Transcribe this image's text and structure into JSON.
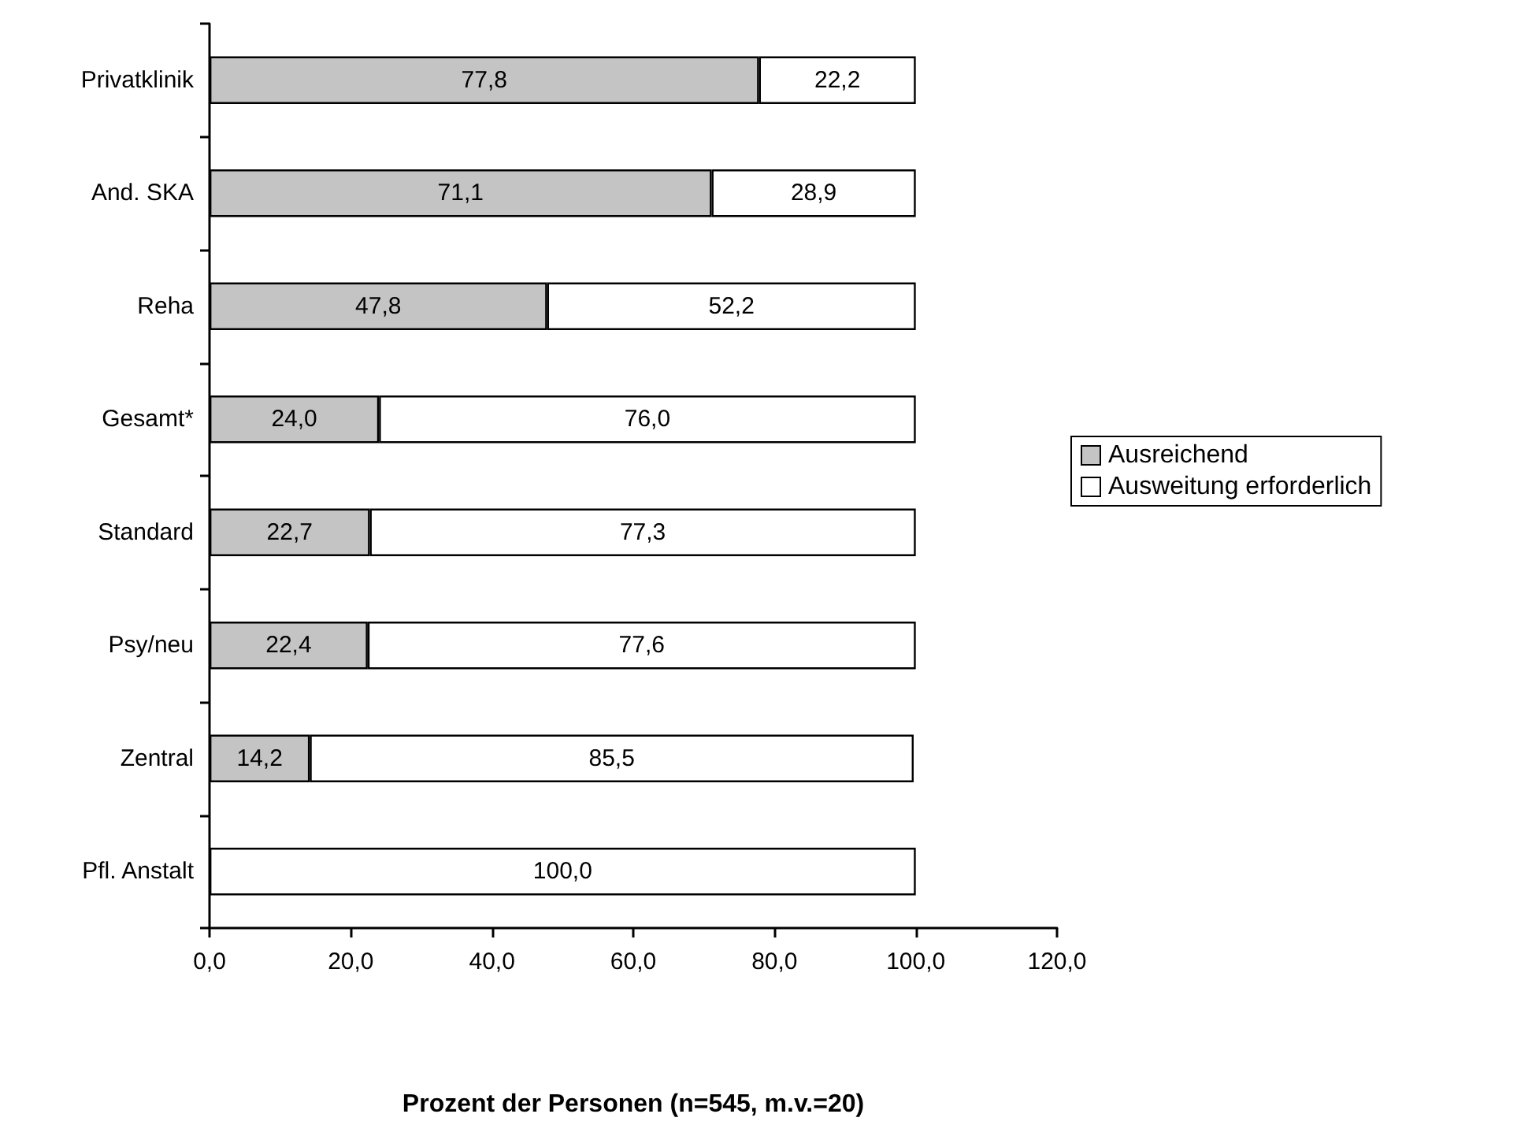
{
  "chart_data": {
    "type": "bar",
    "orientation": "horizontal",
    "stacked": true,
    "xlabel": "Prozent der Personen (n=545, m.v.=20)",
    "categories": [
      "Privatklinik",
      "And. SKA",
      "Reha",
      "Gesamt*",
      "Standard",
      "Psy/neu",
      "Zentral",
      "Pfl. Anstalt"
    ],
    "series": [
      {
        "name": "Ausreichend",
        "color": "#c4c4c4",
        "values": [
          77.8,
          71.1,
          47.8,
          24.0,
          22.7,
          22.4,
          14.2,
          null
        ],
        "value_labels": [
          "77,8",
          "71,1",
          "47,8",
          "24,0",
          "22,7",
          "22,4",
          "14,2",
          null
        ]
      },
      {
        "name": "Ausweitung erforderlich",
        "color": "#ffffff",
        "values": [
          22.2,
          28.9,
          52.2,
          76.0,
          77.3,
          77.6,
          85.5,
          100.0
        ],
        "value_labels": [
          "22,2",
          "28,9",
          "52,2",
          "76,0",
          "77,3",
          "77,6",
          "85,5",
          "100,0"
        ]
      }
    ],
    "xlim": [
      0,
      120
    ],
    "xticks": [
      {
        "value": 0,
        "label": "0,0"
      },
      {
        "value": 20,
        "label": "20,0"
      },
      {
        "value": 40,
        "label": "40,0"
      },
      {
        "value": 60,
        "label": "60,0"
      },
      {
        "value": 80,
        "label": "80,0"
      },
      {
        "value": 100,
        "label": "100,0"
      },
      {
        "value": 120,
        "label": "120,0"
      }
    ],
    "grid": false,
    "legend": "right"
  }
}
